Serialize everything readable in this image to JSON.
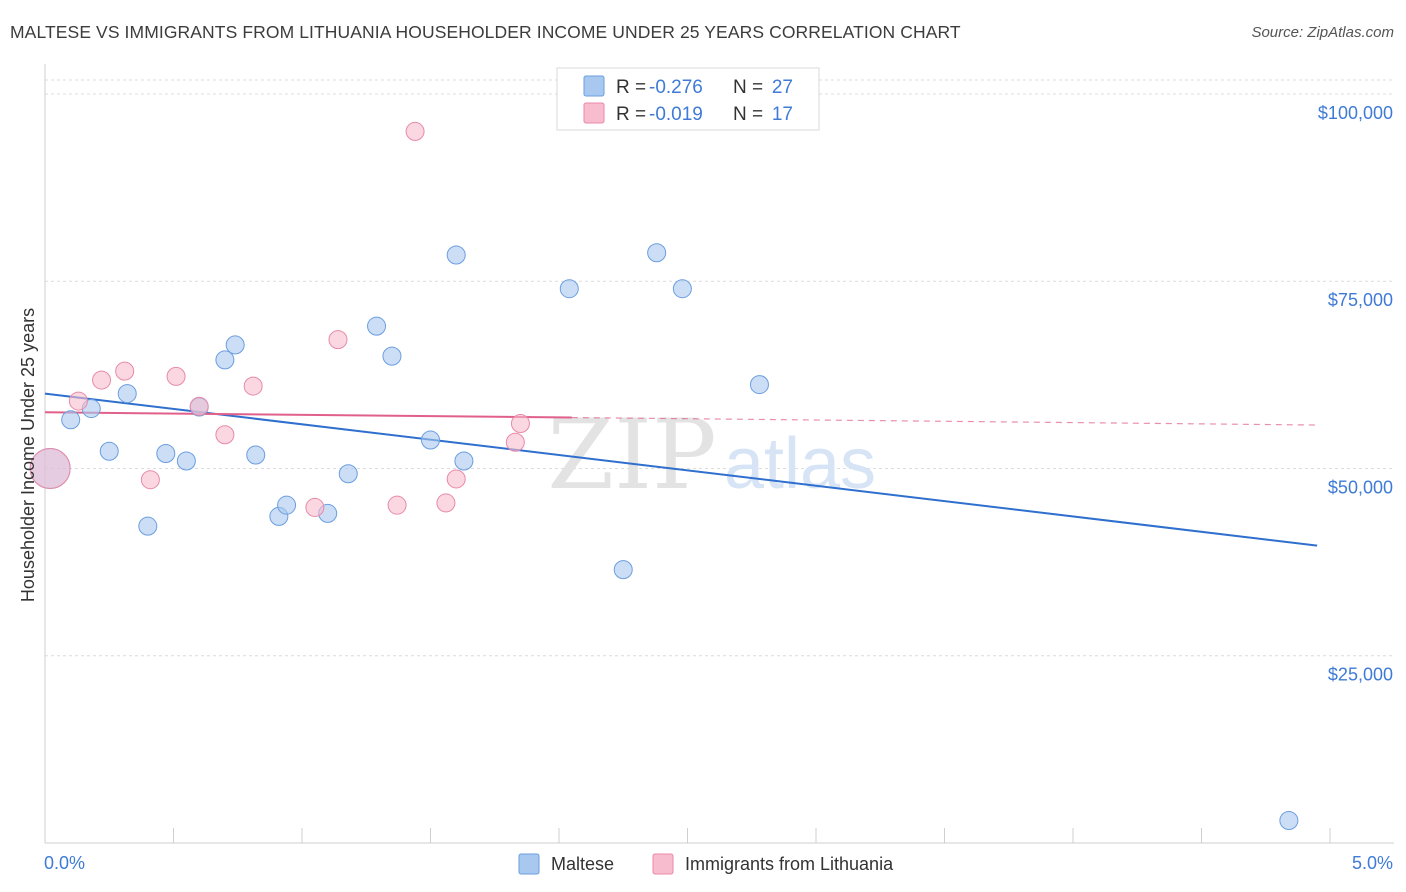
{
  "title": "MALTESE VS IMMIGRANTS FROM LITHUANIA HOUSEHOLDER INCOME UNDER 25 YEARS CORRELATION CHART",
  "source": "Source: ZipAtlas.com",
  "watermark": {
    "zip": "ZIP",
    "atlas": "atlas"
  },
  "chart_data": {
    "type": "scatter",
    "xlabel": "",
    "ylabel": "Householder Income Under 25 years",
    "xlim": [
      0,
      5
    ],
    "ylim": [
      0,
      104000
    ],
    "x_tick_labels": [
      "0.0%",
      "5.0%"
    ],
    "y_ticks": [
      25000,
      50000,
      75000,
      100000
    ],
    "y_tick_labels": [
      "$25,000",
      "$50,000",
      "$75,000",
      "$100,000"
    ],
    "grid": true,
    "legend": [
      {
        "name": "Maltese",
        "r_label": "R = ",
        "r": "-0.276",
        "n_label": "N = ",
        "n": "27",
        "color": "#a9c8ef",
        "stroke": "#6b9ee0"
      },
      {
        "name": "Immigrants from Lithuania",
        "r_label": "R = ",
        "r": "-0.019",
        "n_label": "N = ",
        "n": "17",
        "color": "#f7bccd",
        "stroke": "#e88aa8"
      }
    ],
    "series": [
      {
        "name": "Maltese",
        "color": "#a9c8ef",
        "stroke": "#6b9ee0",
        "line_color": "#2f6fce",
        "trend": {
          "x": [
            0,
            4.95
          ],
          "y": [
            60000,
            39700
          ]
        },
        "points": [
          {
            "x": 0.02,
            "y": 50000,
            "big": true
          },
          {
            "x": 0.1,
            "y": 56500
          },
          {
            "x": 0.18,
            "y": 58000
          },
          {
            "x": 0.25,
            "y": 52300
          },
          {
            "x": 0.32,
            "y": 60000
          },
          {
            "x": 0.4,
            "y": 42300
          },
          {
            "x": 0.47,
            "y": 52000
          },
          {
            "x": 0.55,
            "y": 51000
          },
          {
            "x": 0.6,
            "y": 58200
          },
          {
            "x": 0.7,
            "y": 64500
          },
          {
            "x": 0.74,
            "y": 66500
          },
          {
            "x": 0.82,
            "y": 51800
          },
          {
            "x": 0.91,
            "y": 43600
          },
          {
            "x": 0.94,
            "y": 45100
          },
          {
            "x": 1.1,
            "y": 44000
          },
          {
            "x": 1.18,
            "y": 49300
          },
          {
            "x": 1.29,
            "y": 69000
          },
          {
            "x": 1.35,
            "y": 65000
          },
          {
            "x": 1.5,
            "y": 53800
          },
          {
            "x": 1.6,
            "y": 78500
          },
          {
            "x": 1.63,
            "y": 51000
          },
          {
            "x": 2.04,
            "y": 74000
          },
          {
            "x": 2.25,
            "y": 36500
          },
          {
            "x": 2.38,
            "y": 78800
          },
          {
            "x": 2.48,
            "y": 74000
          },
          {
            "x": 2.78,
            "y": 61200
          },
          {
            "x": 4.84,
            "y": 3000
          }
        ]
      },
      {
        "name": "Immigrants from Lithuania",
        "color": "#f7bccd",
        "stroke": "#e88aa8",
        "line_color": "#e0608a",
        "trend": {
          "x": [
            0,
            2.05
          ],
          "y": [
            57500,
            56800
          ]
        },
        "trend_dashed": {
          "x": [
            2.05,
            4.95
          ],
          "y": [
            56800,
            55800
          ]
        },
        "points": [
          {
            "x": 0.02,
            "y": 50000,
            "big": true
          },
          {
            "x": 0.13,
            "y": 59000
          },
          {
            "x": 0.22,
            "y": 61800
          },
          {
            "x": 0.31,
            "y": 63000
          },
          {
            "x": 0.41,
            "y": 48500
          },
          {
            "x": 0.51,
            "y": 62300
          },
          {
            "x": 0.6,
            "y": 58300
          },
          {
            "x": 0.7,
            "y": 54500
          },
          {
            "x": 0.81,
            "y": 61000
          },
          {
            "x": 1.05,
            "y": 44800
          },
          {
            "x": 1.14,
            "y": 67200
          },
          {
            "x": 1.37,
            "y": 45100
          },
          {
            "x": 1.44,
            "y": 95000
          },
          {
            "x": 1.56,
            "y": 45400
          },
          {
            "x": 1.6,
            "y": 48600
          },
          {
            "x": 1.83,
            "y": 53500
          },
          {
            "x": 1.85,
            "y": 56000
          }
        ]
      }
    ]
  }
}
